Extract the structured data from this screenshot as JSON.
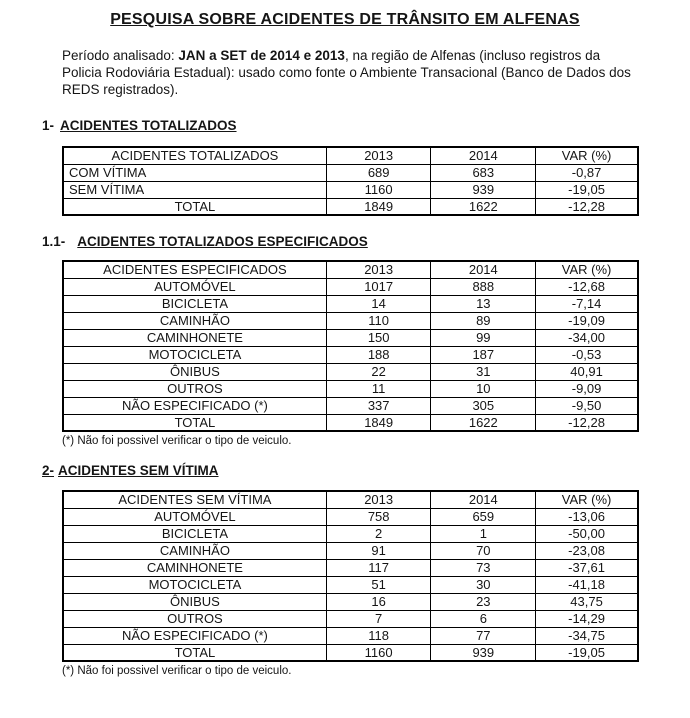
{
  "document": {
    "title": "PESQUISA SOBRE ACIDENTES DE TRÂNSITO EM ALFENAS",
    "intro": {
      "prefix": "Período analisado: ",
      "highlight": "JAN a SET de 2014 e 2013",
      "suffix": ", na região de Alfenas (incluso registros da Policia Rodoviária Estadual): usado como fonte o Ambiente Transacional (Banco de Dados dos REDS registrados)."
    }
  },
  "sections": [
    {
      "number": "1-",
      "heading": "ACIDENTES TOTALIZADOS",
      "footnote": "",
      "table": {
        "headers": [
          "ACIDENTES TOTALIZADOS",
          "2013",
          "2014",
          "VAR (%)"
        ],
        "rows": [
          {
            "label": "COM VÍTIMA",
            "y2013": "689",
            "y2014": "683",
            "var": "-0,87",
            "label_align": "left"
          },
          {
            "label": "SEM VÍTIMA",
            "y2013": "1160",
            "y2014": "939",
            "var": "-19,05",
            "label_align": "left"
          },
          {
            "label": "TOTAL",
            "y2013": "1849",
            "y2014": "1622",
            "var": "-12,28",
            "label_align": "center"
          }
        ]
      }
    },
    {
      "number": "1.1-",
      "heading": "ACIDENTES TOTALIZADOS ESPECIFICADOS",
      "footnote": "(*) Não foi possivel verificar o tipo de veiculo.",
      "table": {
        "headers": [
          "ACIDENTES ESPECIFICADOS",
          "2013",
          "2014",
          "VAR (%)"
        ],
        "rows": [
          {
            "label": "AUTOMÓVEL",
            "y2013": "1017",
            "y2014": "888",
            "var": "-12,68",
            "label_align": "center"
          },
          {
            "label": "BICICLETA",
            "y2013": "14",
            "y2014": "13",
            "var": "-7,14",
            "label_align": "center"
          },
          {
            "label": "CAMINHÃO",
            "y2013": "110",
            "y2014": "89",
            "var": "-19,09",
            "label_align": "center"
          },
          {
            "label": "CAMINHONETE",
            "y2013": "150",
            "y2014": "99",
            "var": "-34,00",
            "label_align": "center"
          },
          {
            "label": "MOTOCICLETA",
            "y2013": "188",
            "y2014": "187",
            "var": "-0,53",
            "label_align": "center"
          },
          {
            "label": "ÔNIBUS",
            "y2013": "22",
            "y2014": "31",
            "var": "40,91",
            "label_align": "center"
          },
          {
            "label": "OUTROS",
            "y2013": "11",
            "y2014": "10",
            "var": "-9,09",
            "label_align": "center"
          },
          {
            "label": "NÃO ESPECIFICADO (*)",
            "y2013": "337",
            "y2014": "305",
            "var": "-9,50",
            "label_align": "center"
          },
          {
            "label": "TOTAL",
            "y2013": "1849",
            "y2014": "1622",
            "var": "-12,28",
            "label_align": "center"
          }
        ]
      }
    },
    {
      "number": "2-",
      "heading": "ACIDENTES SEM VÍTIMA",
      "footnote": "(*) Não foi possivel verificar o tipo de veiculo.",
      "table": {
        "headers": [
          "ACIDENTES SEM VÍTIMA",
          "2013",
          "2014",
          "VAR (%)"
        ],
        "rows": [
          {
            "label": "AUTOMÓVEL",
            "y2013": "758",
            "y2014": "659",
            "var": "-13,06",
            "label_align": "center"
          },
          {
            "label": "BICICLETA",
            "y2013": "2",
            "y2014": "1",
            "var": "-50,00",
            "label_align": "center"
          },
          {
            "label": "CAMINHÃO",
            "y2013": "91",
            "y2014": "70",
            "var": "-23,08",
            "label_align": "center"
          },
          {
            "label": "CAMINHONETE",
            "y2013": "117",
            "y2014": "73",
            "var": "-37,61",
            "label_align": "center"
          },
          {
            "label": "MOTOCICLETA",
            "y2013": "51",
            "y2014": "30",
            "var": "-41,18",
            "label_align": "center"
          },
          {
            "label": "ÔNIBUS",
            "y2013": "16",
            "y2014": "23",
            "var": "43,75",
            "label_align": "center"
          },
          {
            "label": "OUTROS",
            "y2013": "7",
            "y2014": "6",
            "var": "-14,29",
            "label_align": "center"
          },
          {
            "label": "NÃO ESPECIFICADO (*)",
            "y2013": "118",
            "y2014": "77",
            "var": "-34,75",
            "label_align": "center"
          },
          {
            "label": "TOTAL",
            "y2013": "1160",
            "y2014": "939",
            "var": "-19,05",
            "label_align": "center"
          }
        ]
      }
    }
  ]
}
